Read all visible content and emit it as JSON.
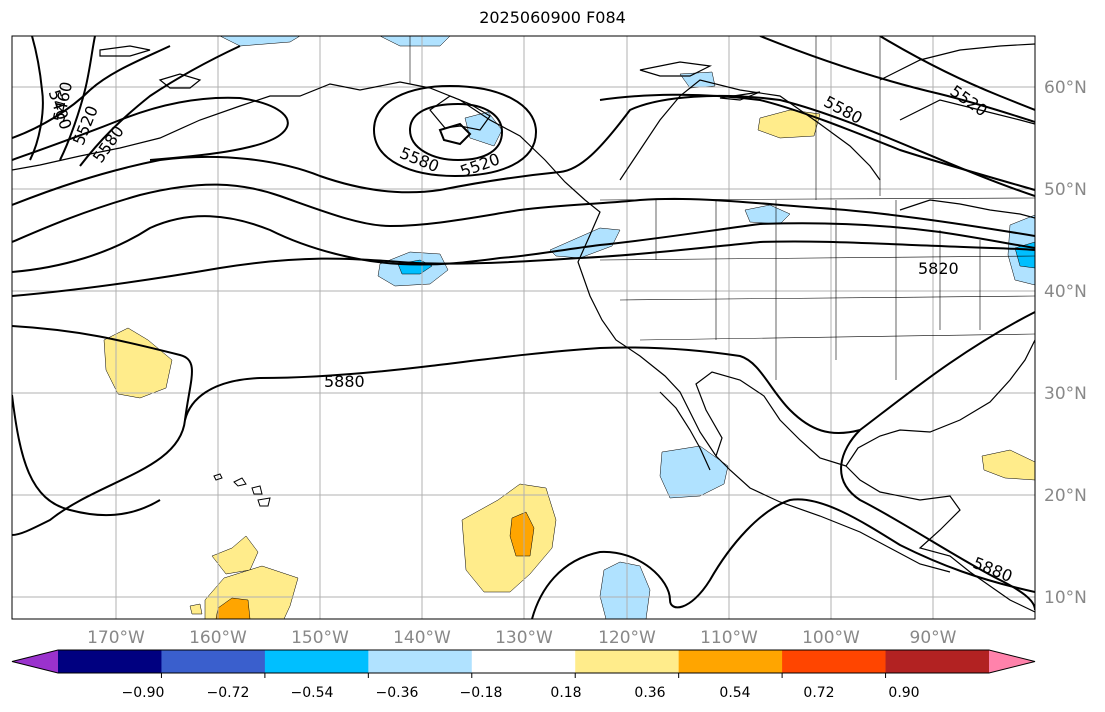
{
  "title": "2025060900 F084",
  "map": {
    "latitude_labels": [
      "60°N",
      "50°N",
      "40°N",
      "30°N",
      "20°N",
      "10°N"
    ],
    "longitude_labels": [
      "170°W",
      "160°W",
      "150°W",
      "140°W",
      "130°W",
      "120°W",
      "110°W",
      "100°W",
      "90°W"
    ],
    "contour_labels": [
      "5400",
      "5460",
      "5520",
      "5580",
      "5580",
      "5520",
      "5580",
      "5520",
      "5820",
      "5880",
      "5880"
    ],
    "grid": true,
    "colors": {
      "contour": "#000000",
      "grid": "#b0b0b0",
      "label": "#888888"
    }
  },
  "colorbar": {
    "ticks": [
      "−0.90",
      "−0.72",
      "−0.54",
      "−0.36",
      "−0.18",
      "0.18",
      "0.36",
      "0.54",
      "0.72",
      "0.90"
    ],
    "colors": [
      "#9a32cd",
      "#000080",
      "#3a5fcd",
      "#00bfff",
      "#b0e2ff",
      "#ffffff",
      "#ffec8b",
      "#ffa500",
      "#ff4500",
      "#b22222",
      "#ff82ab"
    ]
  }
}
